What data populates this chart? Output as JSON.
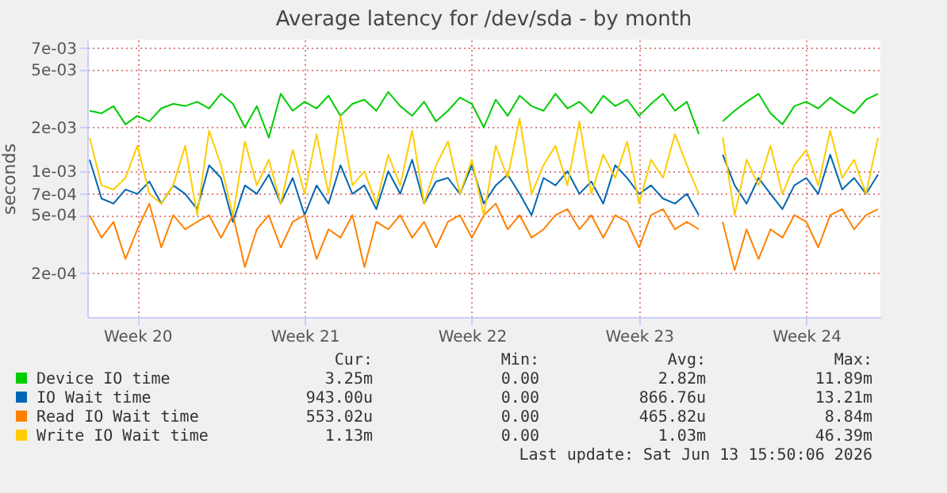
{
  "chart_data": {
    "type": "line",
    "title": "Average latency for /dev/sda - by month",
    "ylabel": "seconds",
    "log": "y",
    "grid": true,
    "legend": "bottom",
    "marker": "none",
    "line_style": "solid",
    "categories": [
      null,
      null,
      null,
      null,
      "Week 20",
      null,
      null,
      null,
      null,
      null,
      null,
      null,
      null,
      null,
      null,
      null,
      null,
      null,
      "Week 21",
      null,
      null,
      null,
      null,
      null,
      null,
      null,
      null,
      null,
      null,
      null,
      null,
      null,
      "Week 22",
      null,
      null,
      null,
      null,
      null,
      null,
      null,
      null,
      null,
      null,
      null,
      null,
      null,
      "Week 23",
      null,
      null,
      null,
      null,
      null,
      null,
      null,
      null,
      null,
      null,
      null,
      null,
      null,
      "Week 24",
      null,
      null,
      null,
      null,
      null,
      null
    ],
    "ylim": [
      0.0001,
      0.008
    ],
    "yticks": [
      {
        "value": 0.0002,
        "label": "2e-04"
      },
      {
        "value": 0.0005,
        "label": "5e-04"
      },
      {
        "value": 0.0007,
        "label": "7e-04"
      },
      {
        "value": 0.001,
        "label": "1e-03"
      },
      {
        "value": 0.002,
        "label": "2e-03"
      },
      {
        "value": 0.005,
        "label": "5e-03"
      },
      {
        "value": 0.007,
        "label": "7e-03"
      }
    ],
    "series": [
      {
        "name": "Device IO time",
        "color": "#00cc00",
        "values": [
          0.0026,
          0.0025,
          0.0028,
          0.0021,
          0.0024,
          0.0022,
          0.0027,
          0.0029,
          0.0028,
          0.003,
          0.0027,
          0.0034,
          0.0029,
          0.002,
          0.0028,
          0.0017,
          0.0034,
          0.0026,
          0.003,
          0.0027,
          0.0033,
          0.0024,
          0.0029,
          0.0031,
          0.0026,
          0.0035,
          0.0028,
          0.0024,
          0.003,
          0.0022,
          0.0026,
          0.0032,
          0.0029,
          0.002,
          0.0031,
          0.0024,
          0.0033,
          0.0028,
          0.0026,
          0.0034,
          0.0027,
          0.003,
          0.0025,
          0.0033,
          0.0028,
          0.0031,
          0.0024,
          0.0029,
          0.0034,
          0.0026,
          0.003,
          0.0018,
          null,
          0.0022,
          0.0026,
          0.003,
          0.0034,
          0.0025,
          0.0021,
          0.0028,
          0.003,
          0.0027,
          0.0032,
          0.0028,
          0.0025,
          0.0031,
          0.0034
        ]
      },
      {
        "name": "IO Wait time",
        "color": "#0066b3",
        "values": [
          0.0012,
          0.00065,
          0.0006,
          0.00075,
          0.0007,
          0.00085,
          0.0006,
          0.0008,
          0.0007,
          0.00055,
          0.0011,
          0.0009,
          0.00045,
          0.0008,
          0.0007,
          0.00095,
          0.0006,
          0.0009,
          0.0005,
          0.0008,
          0.0006,
          0.0011,
          0.0007,
          0.0008,
          0.00055,
          0.001,
          0.0007,
          0.0012,
          0.0006,
          0.00085,
          0.0009,
          0.0007,
          0.0011,
          0.0006,
          0.0008,
          0.00095,
          0.0007,
          0.0005,
          0.0009,
          0.0008,
          0.001,
          0.0007,
          0.00085,
          0.0006,
          0.0011,
          0.0009,
          0.0007,
          0.0008,
          0.00065,
          0.0006,
          0.0007,
          0.0005,
          null,
          0.0013,
          0.0008,
          0.0006,
          0.0009,
          0.0007,
          0.00055,
          0.0008,
          0.0009,
          0.0007,
          0.0013,
          0.00075,
          0.0009,
          0.0007,
          0.00095
        ]
      },
      {
        "name": "Read IO Wait time",
        "color": "#ff8000",
        "values": [
          0.0005,
          0.00035,
          0.00045,
          0.00025,
          0.0004,
          0.0006,
          0.0003,
          0.0005,
          0.0004,
          0.00045,
          0.0005,
          0.00035,
          0.0005,
          0.00022,
          0.0004,
          0.0005,
          0.0003,
          0.00045,
          0.0005,
          0.00025,
          0.0004,
          0.00035,
          0.0005,
          0.00022,
          0.00045,
          0.0004,
          0.0005,
          0.00035,
          0.00045,
          0.0003,
          0.00045,
          0.0005,
          0.00035,
          0.0005,
          0.0006,
          0.0004,
          0.0005,
          0.00035,
          0.0004,
          0.0005,
          0.00055,
          0.0004,
          0.0005,
          0.00035,
          0.0005,
          0.00045,
          0.0003,
          0.0005,
          0.00055,
          0.0004,
          0.00045,
          0.0004,
          null,
          0.00045,
          0.00021,
          0.0004,
          0.00025,
          0.0004,
          0.00035,
          0.0005,
          0.00045,
          0.0003,
          0.0005,
          0.00055,
          0.0004,
          0.0005,
          0.00055
        ]
      },
      {
        "name": "Write IO Wait time",
        "color": "#ffcc00",
        "values": [
          0.0017,
          0.0008,
          0.00075,
          0.0009,
          0.0015,
          0.0007,
          0.0006,
          0.0008,
          0.0015,
          0.0005,
          0.0019,
          0.0011,
          0.0005,
          0.0016,
          0.0008,
          0.0012,
          0.0006,
          0.0014,
          0.0007,
          0.0018,
          0.0007,
          0.0024,
          0.0008,
          0.001,
          0.0006,
          0.0013,
          0.0008,
          0.0019,
          0.0006,
          0.0011,
          0.0016,
          0.0007,
          0.0012,
          0.0005,
          0.0015,
          0.0009,
          0.0023,
          0.0007,
          0.0011,
          0.0015,
          0.0008,
          0.0022,
          0.0007,
          0.0013,
          0.0009,
          0.0016,
          0.0006,
          0.0012,
          0.0009,
          0.0018,
          0.0011,
          0.0007,
          null,
          0.0017,
          0.0005,
          0.0012,
          0.0008,
          0.0015,
          0.0007,
          0.0011,
          0.0014,
          0.0008,
          0.0019,
          0.0009,
          0.0012,
          0.0007,
          0.0017
        ]
      }
    ],
    "annotations": [
      "Cur:",
      "Min:",
      "Avg:",
      "Max:",
      "3.25m",
      "0.00",
      "2.82m",
      "11.89m",
      "943.00u",
      "0.00",
      "866.76u",
      "13.21m",
      "553.02u",
      "0.00",
      "465.82u",
      "8.84m",
      "1.13m",
      "0.00",
      "1.03m",
      "46.39m",
      "Last update: Sat Jun 13 15:50:06 2026"
    ]
  }
}
